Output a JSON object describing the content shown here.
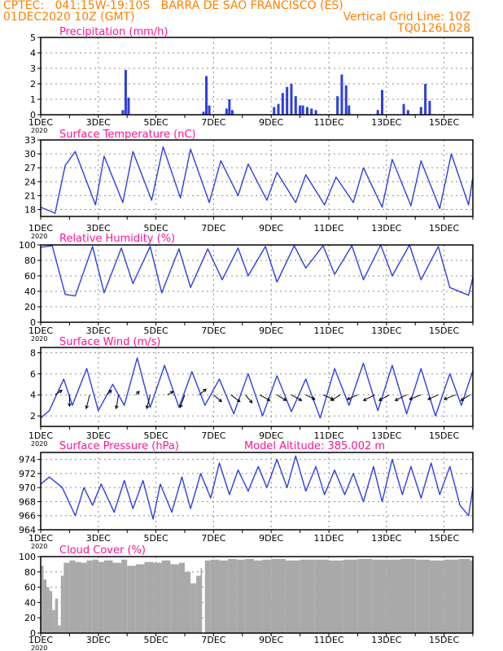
{
  "header": {
    "line1_left": "CPTEC:   041:15W-19:10S   BARRA DE SAO FRANCISCO (ES)",
    "line2_left": "01DEC2020 10Z (GMT)",
    "line2_right": "Vertical Grid Line: 10Z",
    "line3_right": "TQ0126L028",
    "color": "#ff7f00"
  },
  "colors": {
    "title": "#ff1493",
    "line": "#2f3fe0",
    "bar": "#2f3fe0",
    "cloud": "#a9a9a9",
    "grid": "#8c8c8c",
    "axis": "#000000"
  },
  "x_axis": {
    "days_range": [
      1,
      16
    ],
    "tick_labels": [
      "1DEC",
      "3DEC",
      "5DEC",
      "7DEC",
      "9DEC",
      "11DEC",
      "13DEC",
      "15DEC"
    ],
    "tick_days": [
      1,
      3,
      5,
      7,
      9,
      11,
      13,
      15
    ],
    "year_label": "2020"
  },
  "panels": [
    {
      "id": "precip",
      "title": "Precipitation (mm/h)",
      "extra": ""
    },
    {
      "id": "temp",
      "title": "Surface Temperature (nC)",
      "extra": ""
    },
    {
      "id": "rh",
      "title": "Relative Humidity (%)",
      "extra": ""
    },
    {
      "id": "wind",
      "title": "Surface Wind (m/s)",
      "extra": ""
    },
    {
      "id": "pres",
      "title": "Surface Pressure (hPa)",
      "extra": "Model Altitude: 385.002 m"
    },
    {
      "id": "cloud",
      "title": "Cloud Cover (%)",
      "extra": ""
    }
  ],
  "chart_data": [
    {
      "type": "bar",
      "title": "Precipitation (mm/h)",
      "ylabel": "mm/h",
      "ylim": [
        0,
        5
      ],
      "yticks": [
        0,
        1,
        2,
        3,
        4,
        5
      ],
      "x_day": [
        3.85,
        3.95,
        4.05,
        6.65,
        6.75,
        6.85,
        7.45,
        7.55,
        7.65,
        9.1,
        9.25,
        9.4,
        9.55,
        9.7,
        9.85,
        10.0,
        10.1,
        10.25,
        10.4,
        10.55,
        11.3,
        11.45,
        11.6,
        11.7,
        12.7,
        12.85,
        13.6,
        13.75,
        14.2,
        14.35,
        14.5
      ],
      "values": [
        0.3,
        2.9,
        1.1,
        0.2,
        2.5,
        0.6,
        0.4,
        1.0,
        0.3,
        0.5,
        0.7,
        1.4,
        1.8,
        2.0,
        1.2,
        0.6,
        0.6,
        0.5,
        0.4,
        0.3,
        1.2,
        2.6,
        1.9,
        0.6,
        0.3,
        1.6,
        0.7,
        0.3,
        0.5,
        2.0,
        0.9
      ]
    },
    {
      "type": "line",
      "title": "Surface Temperature (nC)",
      "ylabel": "nC",
      "ylim": [
        16.5,
        33
      ],
      "yticks": [
        18,
        21,
        24,
        27,
        30,
        33
      ],
      "x_day": [
        1.0,
        1.5,
        1.85,
        2.2,
        2.9,
        3.2,
        3.85,
        4.2,
        4.85,
        5.25,
        5.85,
        6.2,
        6.85,
        7.25,
        7.85,
        8.2,
        8.85,
        9.2,
        9.85,
        10.2,
        10.85,
        11.25,
        11.85,
        12.2,
        12.85,
        13.2,
        13.85,
        14.2,
        14.85,
        15.25,
        15.85,
        16.0
      ],
      "y": [
        18.5,
        17.2,
        27.5,
        30.5,
        19.0,
        29.5,
        19.5,
        30.5,
        20.0,
        31.5,
        20.5,
        31.0,
        19.5,
        28.5,
        21.0,
        27.8,
        20.0,
        26.0,
        19.5,
        25.5,
        19.0,
        25.0,
        19.5,
        27.0,
        18.5,
        28.8,
        18.8,
        28.5,
        18.2,
        30.0,
        19.0,
        25.0
      ]
    },
    {
      "type": "line",
      "title": "Relative Humidity (%)",
      "ylabel": "%",
      "ylim": [
        0,
        100
      ],
      "yticks": [
        0,
        20,
        40,
        60,
        80,
        100
      ],
      "x_day": [
        1.0,
        1.4,
        1.85,
        2.2,
        2.8,
        3.2,
        3.8,
        4.2,
        4.8,
        5.2,
        5.8,
        6.2,
        6.8,
        7.3,
        7.85,
        8.2,
        8.8,
        9.2,
        9.8,
        10.2,
        10.8,
        11.2,
        11.8,
        12.2,
        12.8,
        13.2,
        13.8,
        14.2,
        14.8,
        15.2,
        15.85,
        16.0
      ],
      "y": [
        97,
        99,
        36,
        34,
        98,
        38,
        96,
        50,
        98,
        38,
        95,
        45,
        95,
        55,
        96,
        60,
        98,
        52,
        99,
        70,
        99,
        62,
        99,
        55,
        100,
        60,
        100,
        55,
        98,
        45,
        35,
        58
      ]
    },
    {
      "type": "line",
      "title": "Surface Wind (m/s)",
      "ylabel": "m/s",
      "ylim": [
        1,
        8.5
      ],
      "yticks": [
        2,
        4,
        6,
        8
      ],
      "x_day": [
        1.0,
        1.3,
        1.8,
        2.1,
        2.6,
        3.0,
        3.5,
        3.9,
        4.35,
        4.8,
        5.3,
        5.8,
        6.25,
        6.7,
        7.2,
        7.7,
        8.2,
        8.7,
        9.2,
        9.7,
        10.2,
        10.7,
        11.2,
        11.7,
        12.2,
        12.7,
        13.2,
        13.7,
        14.2,
        14.7,
        15.2,
        15.6,
        16.0
      ],
      "y": [
        1.8,
        2.5,
        5.5,
        3.0,
        6.5,
        2.5,
        5.0,
        3.0,
        7.5,
        2.8,
        6.8,
        2.8,
        6.2,
        3.0,
        5.5,
        2.2,
        6.0,
        2.0,
        5.8,
        2.4,
        5.5,
        1.8,
        6.5,
        3.0,
        7.0,
        2.5,
        6.8,
        2.2,
        6.5,
        2.0,
        6.0,
        3.0,
        6.3
      ],
      "arrows": {
        "x_day": [
          1.5,
          2.0,
          2.7,
          3.3,
          3.7,
          4.3,
          4.8,
          5.4,
          6.0,
          6.5,
          7.0,
          7.6,
          8.1,
          8.6,
          9.2,
          9.7,
          10.2,
          10.8,
          11.4,
          12.0,
          12.6,
          13.1,
          13.7,
          14.2,
          14.8,
          15.4,
          15.9
        ],
        "y": [
          4.0,
          4.0,
          4.0,
          4.0,
          4.0,
          4.0,
          4.0,
          4.0,
          4.0,
          4.0,
          4.0,
          4.0,
          4.0,
          4.0,
          4.0,
          4.0,
          4.0,
          4.0,
          4.0,
          4.0,
          4.0,
          4.0,
          4.0,
          4.0,
          4.0,
          4.0,
          4.0
        ],
        "u": [
          0.6,
          0.0,
          -0.3,
          0.4,
          -0.2,
          0.3,
          -0.3,
          0.5,
          -0.4,
          0.6,
          0.7,
          0.8,
          0.6,
          0.9,
          0.8,
          0.9,
          0.8,
          0.9,
          -0.8,
          -0.9,
          -1.0,
          -0.9,
          -1.0,
          -1.0,
          -0.9,
          -1.0,
          -0.8
        ],
        "v": [
          0.4,
          -1.0,
          -1.2,
          0.4,
          -1.2,
          0.3,
          -1.2,
          0.3,
          -1.1,
          0.5,
          -0.6,
          -0.6,
          -0.7,
          -0.5,
          -0.5,
          -0.5,
          -0.4,
          -0.4,
          -0.5,
          -0.4,
          -0.5,
          -0.5,
          -0.5,
          -0.4,
          -0.4,
          -0.4,
          -0.5
        ]
      }
    },
    {
      "type": "line",
      "title": "Surface Pressure (hPa)",
      "ylabel": "hPa",
      "ylim": [
        964,
        975
      ],
      "yticks": [
        964,
        966,
        968,
        970,
        972,
        974
      ],
      "x_day": [
        1.0,
        1.3,
        1.75,
        2.2,
        2.5,
        2.8,
        3.1,
        3.55,
        3.9,
        4.2,
        4.55,
        4.9,
        5.15,
        5.55,
        5.9,
        6.2,
        6.55,
        6.9,
        7.2,
        7.55,
        7.85,
        8.2,
        8.55,
        8.85,
        9.2,
        9.55,
        9.85,
        10.2,
        10.55,
        10.85,
        11.2,
        11.55,
        11.85,
        12.2,
        12.55,
        12.85,
        13.2,
        13.55,
        13.85,
        14.2,
        14.55,
        14.85,
        15.2,
        15.55,
        15.85,
        16.0
      ],
      "y": [
        970.5,
        971.5,
        970.0,
        966.0,
        970.0,
        967.5,
        970.5,
        966.5,
        971.0,
        967.0,
        971.0,
        965.5,
        970.5,
        966.5,
        971.5,
        967.0,
        972.0,
        968.5,
        973.5,
        969.0,
        972.5,
        969.5,
        973.0,
        970.0,
        974.0,
        970.0,
        974.5,
        969.5,
        973.0,
        969.0,
        972.5,
        969.0,
        972.0,
        968.0,
        973.0,
        968.0,
        974.0,
        969.0,
        973.0,
        968.5,
        973.5,
        969.0,
        973.0,
        967.5,
        966.0,
        970.0
      ]
    },
    {
      "type": "bar",
      "title": "Cloud Cover (%)",
      "ylabel": "%",
      "ylim": [
        0,
        100
      ],
      "yticks": [
        0,
        20,
        40,
        60,
        80,
        100
      ],
      "x_day": [
        1.0,
        1.1,
        1.2,
        1.3,
        1.4,
        1.5,
        1.6,
        1.7,
        1.8,
        2.0,
        2.2,
        2.4,
        2.6,
        2.8,
        3.0,
        3.2,
        3.5,
        3.8,
        4.0,
        4.3,
        4.6,
        4.9,
        5.2,
        5.5,
        5.8,
        6.0,
        6.2,
        6.4,
        6.55,
        6.6,
        6.7,
        6.9,
        7.2,
        7.5,
        7.8,
        8.1,
        8.4,
        8.7,
        9.0,
        9.5,
        10.0,
        10.5,
        11.0,
        11.5,
        12.0,
        12.5,
        13.0,
        13.5,
        14.0,
        14.5,
        15.0,
        15.5,
        15.9
      ],
      "values": [
        88,
        70,
        60,
        55,
        30,
        45,
        10,
        75,
        92,
        95,
        93,
        92,
        95,
        96,
        93,
        95,
        92,
        96,
        88,
        90,
        93,
        92,
        95,
        90,
        92,
        80,
        65,
        75,
        85,
        0,
        95,
        96,
        95,
        97,
        96,
        97,
        95,
        96,
        97,
        95,
        96,
        96,
        95,
        96,
        97,
        96,
        96,
        97,
        96,
        95,
        96,
        97,
        95
      ]
    }
  ]
}
